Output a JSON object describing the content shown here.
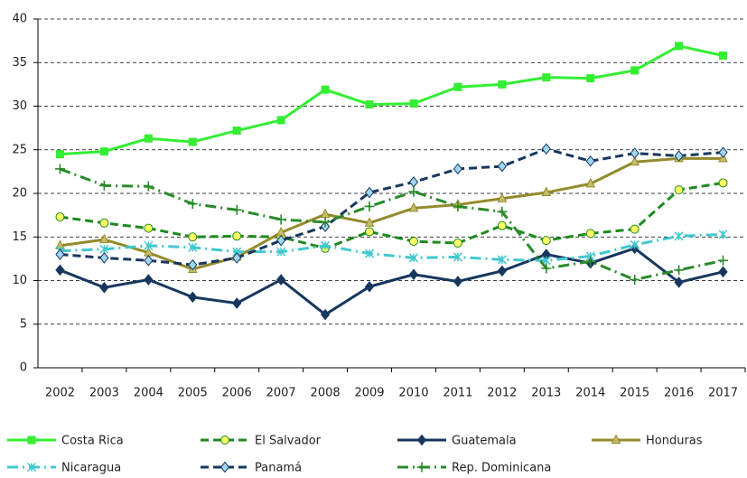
{
  "chart_data": {
    "type": "line",
    "categories": [
      "2002",
      "2003",
      "2004",
      "2005",
      "2006",
      "2007",
      "2008",
      "2009",
      "2010",
      "2011",
      "2012",
      "2013",
      "2014",
      "2015",
      "2016",
      "2017"
    ],
    "ylim": [
      0,
      40
    ],
    "yticks": [
      0,
      5,
      10,
      15,
      20,
      25,
      30,
      35,
      40
    ],
    "grid": true,
    "series": [
      {
        "name": "Costa Rica",
        "color": "#33ee33",
        "marker": "square",
        "marker_color": "#33ee33",
        "dash": "solid",
        "values": [
          24.5,
          24.8,
          26.3,
          25.9,
          27.2,
          28.4,
          31.9,
          30.2,
          30.3,
          32.2,
          32.5,
          33.3,
          33.2,
          34.1,
          36.9,
          35.8
        ]
      },
      {
        "name": "El Salvador",
        "color": "#1f8a1f",
        "marker": "circle",
        "marker_color": "#ffff66",
        "dash": "dashed",
        "values": [
          17.3,
          16.6,
          16.0,
          15.0,
          15.1,
          15.0,
          13.7,
          15.6,
          14.5,
          14.3,
          16.3,
          14.6,
          15.4,
          15.9,
          20.4,
          21.2
        ]
      },
      {
        "name": "Guatemala",
        "color": "#17375e",
        "marker": "diamond",
        "marker_color": "#17375e",
        "dash": "solid",
        "values": [
          11.2,
          9.2,
          10.1,
          8.1,
          7.4,
          10.1,
          6.1,
          9.3,
          10.7,
          9.9,
          11.1,
          13.0,
          12.0,
          13.7,
          9.8,
          11.0
        ]
      },
      {
        "name": "Honduras",
        "color": "#948a2c",
        "marker": "triangle",
        "marker_color": "#c4bd6a",
        "dash": "solid",
        "values": [
          14.0,
          14.7,
          13.2,
          11.3,
          12.7,
          15.5,
          17.6,
          16.6,
          18.3,
          18.7,
          19.4,
          20.1,
          21.1,
          23.6,
          24.0,
          24.0
        ]
      },
      {
        "name": "Nicaragua",
        "color": "#40c8d0",
        "marker": "asterisk",
        "marker_color": "#40c8d0",
        "dash": "dashdot",
        "values": [
          13.4,
          13.6,
          14.0,
          13.8,
          13.3,
          13.3,
          14.0,
          13.1,
          12.6,
          12.7,
          12.4,
          12.3,
          12.8,
          14.1,
          15.1,
          15.3
        ]
      },
      {
        "name": "Panamá",
        "color": "#17375e",
        "marker": "diamond",
        "marker_color": "#9fd6f0",
        "dash": "dashed",
        "values": [
          13.0,
          12.6,
          12.3,
          11.8,
          12.6,
          14.6,
          16.2,
          20.1,
          21.3,
          22.8,
          23.1,
          25.1,
          23.7,
          24.6,
          24.3,
          24.7
        ]
      },
      {
        "name": "Rep. Dominicana",
        "color": "#2a8a2a",
        "marker": "plus",
        "marker_color": "#2a8a2a",
        "dash": "dashdot",
        "values": [
          22.8,
          20.9,
          20.8,
          18.8,
          18.1,
          17.0,
          16.7,
          18.5,
          20.2,
          18.5,
          17.9,
          11.4,
          12.2,
          10.1,
          11.2,
          12.3
        ]
      }
    ]
  }
}
